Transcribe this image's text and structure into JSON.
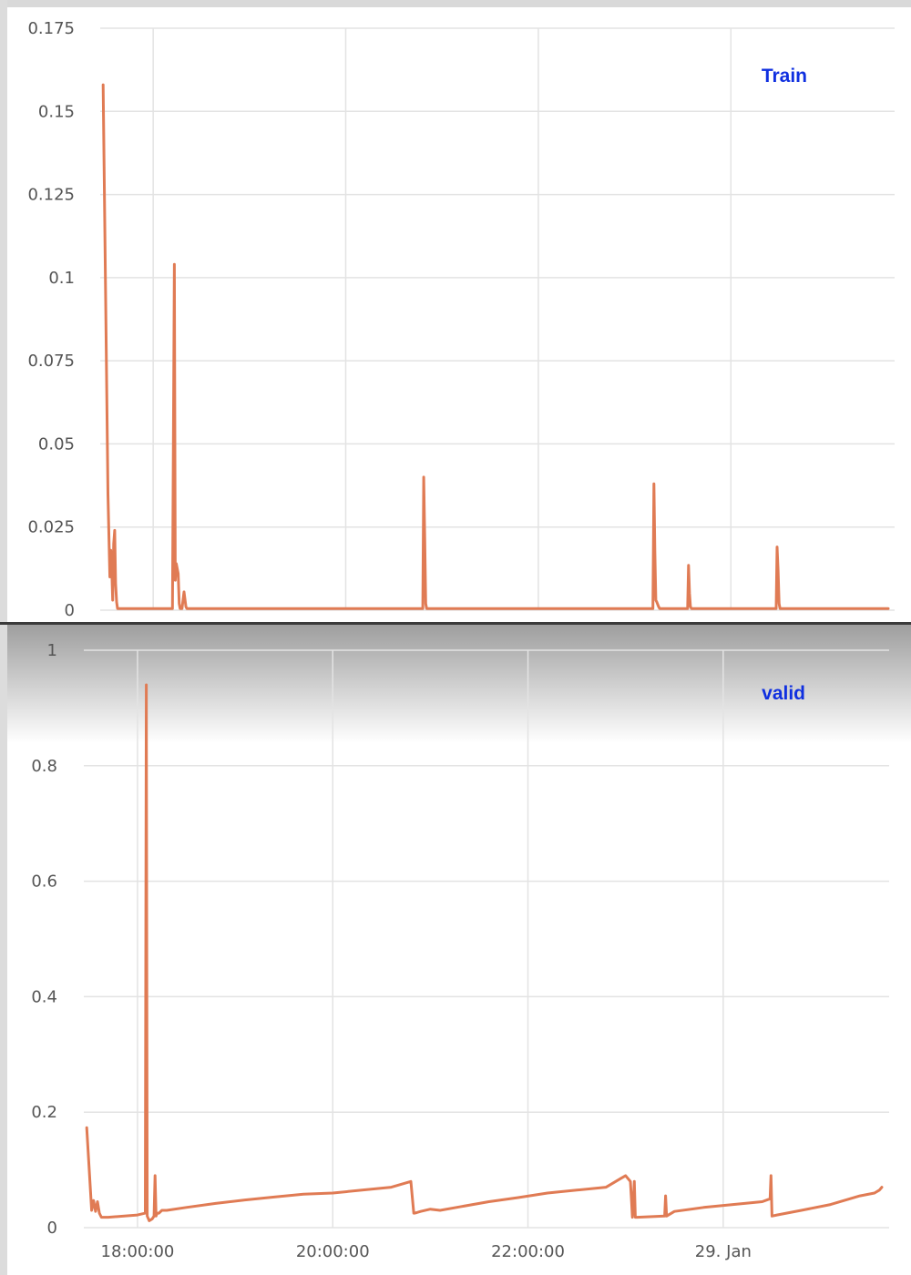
{
  "colors": {
    "line": "#e07b54",
    "grid": "#e3e3e3",
    "legend_text": "#1030e0",
    "tick_text": "#555555"
  },
  "chart_data": [
    {
      "type": "line",
      "legend": "Train",
      "ylim": [
        0,
        0.175
      ],
      "y_ticks": [
        "0",
        "0.025",
        "0.05",
        "0.075",
        "0.1",
        "0.125",
        "0.15",
        "0.175"
      ],
      "xlim": [
        17.45,
        25.7
      ],
      "x_grid": [
        18,
        20,
        22,
        24
      ],
      "grid": true,
      "legend_position": "top-right",
      "series": [
        {
          "x": [
            17.48,
            17.53,
            17.55,
            17.56,
            17.57,
            17.58,
            17.59,
            17.6,
            17.61,
            17.62,
            17.63,
            18.2,
            18.22,
            18.23,
            18.24,
            18.26,
            18.27,
            18.28,
            18.3,
            18.32,
            18.34,
            18.35,
            18.36,
            20.8,
            20.81,
            20.82,
            20.83,
            20.84,
            23.19,
            23.2,
            23.21,
            23.22,
            23.23,
            23.25,
            23.26,
            23.55,
            23.56,
            23.57,
            23.58,
            23.59,
            24.47,
            24.48,
            24.49,
            24.5,
            24.51,
            25.7
          ],
          "y": [
            0.158,
            0.035,
            0.01,
            0.018,
            0.012,
            0.003,
            0.02,
            0.024,
            0.008,
            0.0025,
            0.0005,
            0.0005,
            0.104,
            0.009,
            0.014,
            0.011,
            0.002,
            0.0005,
            0.0005,
            0.0055,
            0.001,
            0.0005,
            0.0005,
            0.0005,
            0.04,
            0.022,
            0.002,
            0.0005,
            0.0005,
            0.038,
            0.018,
            0.003,
            0.0025,
            0.001,
            0.0005,
            0.0005,
            0.0135,
            0.005,
            0.001,
            0.0005,
            0.0005,
            0.019,
            0.012,
            0.002,
            0.0005,
            0.0005
          ]
        }
      ]
    },
    {
      "type": "line",
      "legend": "valid",
      "ylim": [
        0,
        1
      ],
      "y_ticks": [
        "0",
        "0.2",
        "0.4",
        "0.6",
        "0.8",
        "1"
      ],
      "x_tick_labels": [
        "18:00:00",
        "20:00:00",
        "22:00:00",
        "29. Jan"
      ],
      "xlim": [
        17.45,
        25.7
      ],
      "x_grid": [
        18,
        20,
        22,
        24
      ],
      "grid": true,
      "legend_position": "top-right",
      "series": [
        {
          "x": [
            17.48,
            17.53,
            17.55,
            17.57,
            17.59,
            17.61,
            17.63,
            17.65,
            17.7,
            18.0,
            18.08,
            18.09,
            18.1,
            18.12,
            18.15,
            18.17,
            18.18,
            18.19,
            18.2,
            18.22,
            18.25,
            18.3,
            18.5,
            18.8,
            19.1,
            19.4,
            19.7,
            20.0,
            20.3,
            20.6,
            20.8,
            20.83,
            20.84,
            20.86,
            20.9,
            21.0,
            21.1,
            21.3,
            21.6,
            21.9,
            22.2,
            22.5,
            22.8,
            22.95,
            23.0,
            23.05,
            23.06,
            23.07,
            23.09,
            23.1,
            23.12,
            23.4,
            23.41,
            23.42,
            23.5,
            23.8,
            24.1,
            24.4,
            24.48,
            24.49,
            24.5,
            24.55,
            24.8,
            25.1,
            25.4,
            25.55,
            25.6,
            25.63
          ],
          "y": [
            0.173,
            0.03,
            0.047,
            0.028,
            0.045,
            0.025,
            0.018,
            0.018,
            0.018,
            0.022,
            0.025,
            0.94,
            0.02,
            0.012,
            0.015,
            0.02,
            0.09,
            0.02,
            0.025,
            0.025,
            0.03,
            0.03,
            0.035,
            0.042,
            0.048,
            0.053,
            0.058,
            0.06,
            0.065,
            0.07,
            0.08,
            0.025,
            0.025,
            0.026,
            0.028,
            0.032,
            0.03,
            0.036,
            0.045,
            0.052,
            0.06,
            0.065,
            0.07,
            0.085,
            0.09,
            0.08,
            0.05,
            0.018,
            0.08,
            0.018,
            0.018,
            0.02,
            0.055,
            0.02,
            0.028,
            0.035,
            0.04,
            0.045,
            0.05,
            0.09,
            0.02,
            0.022,
            0.03,
            0.04,
            0.055,
            0.06,
            0.065,
            0.07
          ]
        }
      ]
    }
  ]
}
